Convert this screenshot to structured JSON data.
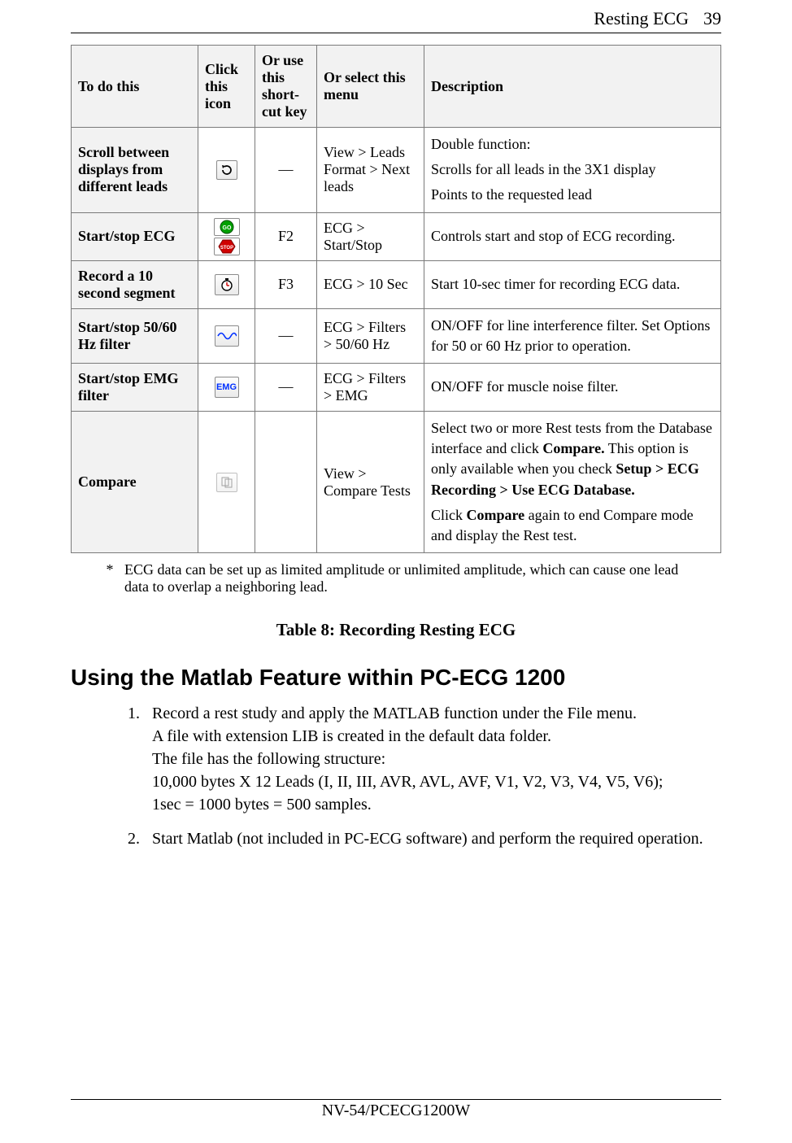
{
  "header": {
    "title": "Resting ECG",
    "page_number": "39"
  },
  "table": {
    "columns": [
      "To do this",
      "Click this icon",
      "Or use this short-cut key",
      "Or select this menu",
      "Description"
    ],
    "rows": [
      {
        "task": "Scroll between displays from different leads",
        "icon": "refresh-icon",
        "shortcut": "—",
        "menu": "View > Leads Format > Next leads",
        "description_parts": [
          "Double function:",
          "Scrolls for all leads in the 3X1 display",
          "Points to the requested lead"
        ]
      },
      {
        "task": "Start/stop ECG",
        "icon": "go-stop-icon",
        "shortcut": "F2",
        "menu": "ECG > Start/Stop",
        "description_parts": [
          "Controls start and stop of ECG recording."
        ]
      },
      {
        "task": "Record a 10 second segment",
        "icon": "stopwatch-icon",
        "shortcut": "F3",
        "menu": "ECG > 10 Sec",
        "description_parts": [
          "Start 10-sec timer for recording ECG data."
        ]
      },
      {
        "task": "Start/stop 50/60 Hz filter",
        "icon": "wave-icon",
        "shortcut": "—",
        "menu": "ECG > Filters > 50/60 Hz",
        "description_parts": [
          "ON/OFF for line interference filter. Set Options for 50 or 60 Hz prior to operation."
        ]
      },
      {
        "task": "Start/stop EMG filter",
        "icon": "emg-icon",
        "shortcut": "—",
        "menu": "ECG > Filters > EMG",
        "description_parts": [
          "ON/OFF for muscle noise filter."
        ]
      },
      {
        "task": "Compare",
        "icon": "compare-icon",
        "shortcut": "",
        "menu": "View > Compare Tests",
        "description_html_parts": [
          "Select two or more Rest tests from the Database interface and click <b>Compare.</b> This option is only available when you check <b>Setup > ECG Recording > Use ECG Database.</b>",
          "Click <b>Compare</b> again to end Compare mode and display the Rest test."
        ]
      }
    ]
  },
  "footnote": {
    "marker": "*",
    "text": "ECG data can be set up as limited amplitude or unlimited amplitude, which can cause one lead data to overlap a neighboring lead."
  },
  "caption": "Table 8: Recording Resting ECG",
  "section_heading": "Using the Matlab Feature within PC-ECG 1200",
  "steps": [
    "Record a rest study and apply the MATLAB function under the File menu.<br>A file with extension LIB is created in the default data folder.<br>The file has the following structure:<br>10,000 bytes X 12 Leads (I, II, III, AVR, AVL, AVF, V1, V2, V3, V4, V5, V6);<br>1sec = 1000 bytes = 500 samples.",
    "Start Matlab (not included in PC-ECG software) and perform the required operation."
  ],
  "footer": "NV-54/PCECG1200W",
  "icon_labels": {
    "go": "GO",
    "stop": "STOP",
    "emg": "EMG"
  }
}
